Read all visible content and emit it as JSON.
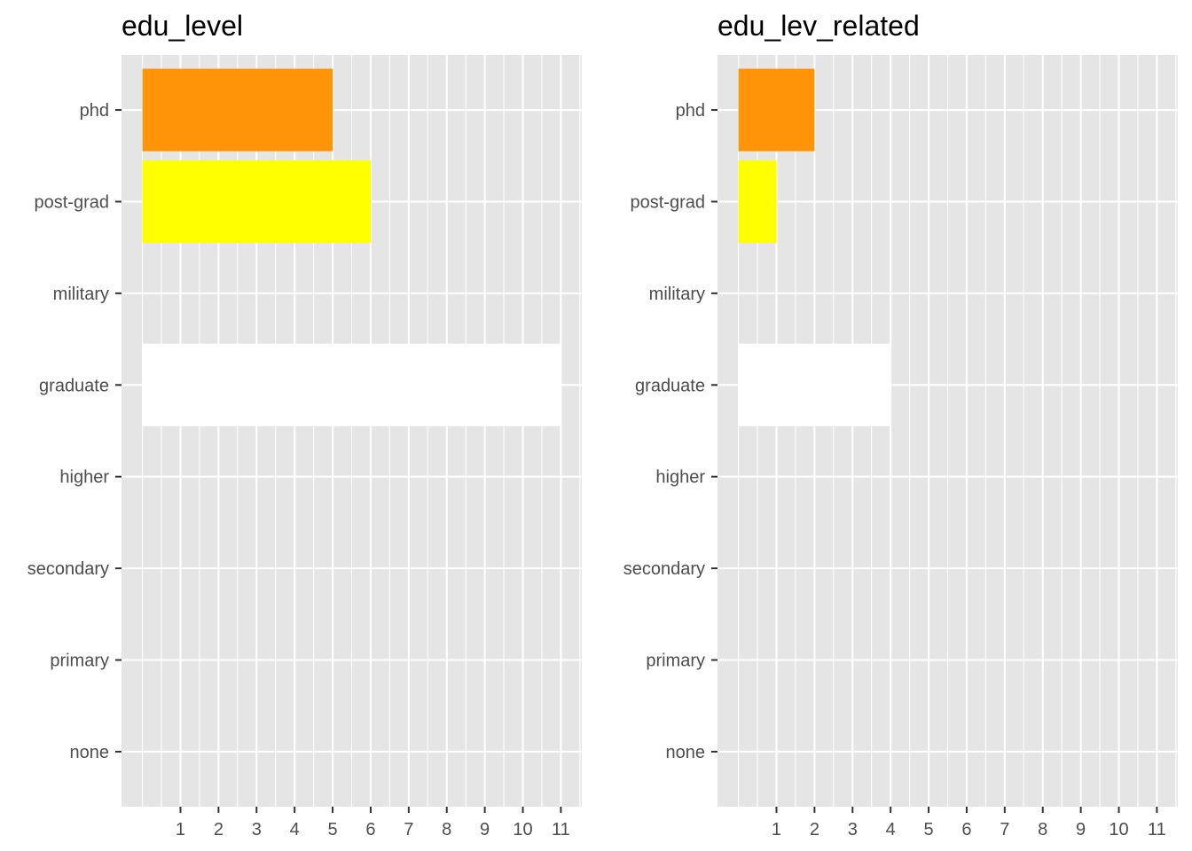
{
  "chart_data": [
    {
      "type": "bar",
      "orientation": "horizontal",
      "title": "edu_level",
      "xlabel": "",
      "ylabel": "",
      "categories": [
        "phd",
        "post-grad",
        "military",
        "graduate",
        "higher",
        "secondary",
        "primary",
        "none"
      ],
      "values": [
        5,
        6,
        0,
        11,
        0,
        0,
        0,
        0
      ],
      "bar_colors": [
        "#FF9408",
        "#FFFF00",
        "#FFFFFF",
        "#FFFFFF",
        "#FFFFFF",
        "#FFFFFF",
        "#FFFFFF",
        "#FFFFFF"
      ],
      "x_ticks": [
        "1",
        "2",
        "3",
        "4",
        "5",
        "6",
        "7",
        "8",
        "9",
        "10",
        "11"
      ],
      "xlim": [
        -0.55,
        11.55
      ],
      "grid": true,
      "legend": "none"
    },
    {
      "type": "bar",
      "orientation": "horizontal",
      "title": "edu_lev_related",
      "xlabel": "",
      "ylabel": "",
      "categories": [
        "phd",
        "post-grad",
        "military",
        "graduate",
        "higher",
        "secondary",
        "primary",
        "none"
      ],
      "values": [
        2,
        1,
        0,
        4,
        0,
        0,
        0,
        0
      ],
      "bar_colors": [
        "#FF9408",
        "#FFFF00",
        "#FFFFFF",
        "#FFFFFF",
        "#FFFFFF",
        "#FFFFFF",
        "#FFFFFF",
        "#FFFFFF"
      ],
      "x_ticks": [
        "1",
        "2",
        "3",
        "4",
        "5",
        "6",
        "7",
        "8",
        "9",
        "10",
        "11"
      ],
      "xlim": [
        -0.55,
        11.55
      ],
      "grid": true,
      "legend": "none"
    }
  ],
  "colors": {
    "panel_background": "#E5E5E5",
    "grid_line": "#FFFFFF",
    "tick_mark": "#333333",
    "tick_label": "#4D4D4D",
    "title": "#000000"
  }
}
